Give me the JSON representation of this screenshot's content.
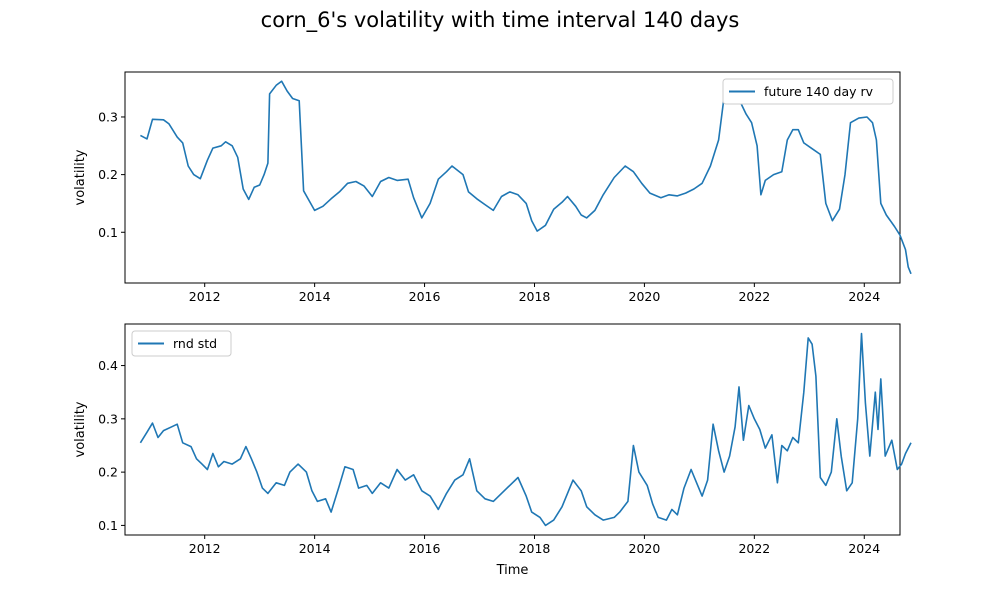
{
  "suptitle": "corn_6's volatility with time interval 140 days",
  "chart_data": [
    {
      "type": "line",
      "panel": "top",
      "xlabel": "",
      "ylabel": "volatility",
      "xlim": [
        2010.55,
        2024.65
      ],
      "ylim": [
        0.012,
        0.378
      ],
      "xticks": [
        2012,
        2014,
        2016,
        2018,
        2020,
        2022,
        2024
      ],
      "yticks": [
        0.1,
        0.2,
        0.3
      ],
      "legend": "upper right",
      "color": "#1f77b4",
      "series": [
        {
          "name": "future 140 day rv",
          "points": [
            [
              2010.83,
              0.268
            ],
            [
              2010.95,
              0.262
            ],
            [
              2011.05,
              0.296
            ],
            [
              2011.25,
              0.295
            ],
            [
              2011.35,
              0.288
            ],
            [
              2011.5,
              0.265
            ],
            [
              2011.6,
              0.255
            ],
            [
              2011.7,
              0.215
            ],
            [
              2011.8,
              0.2
            ],
            [
              2011.92,
              0.193
            ],
            [
              2012.05,
              0.225
            ],
            [
              2012.15,
              0.246
            ],
            [
              2012.3,
              0.25
            ],
            [
              2012.38,
              0.257
            ],
            [
              2012.5,
              0.25
            ],
            [
              2012.6,
              0.23
            ],
            [
              2012.7,
              0.175
            ],
            [
              2012.8,
              0.157
            ],
            [
              2012.9,
              0.178
            ],
            [
              2013.0,
              0.182
            ],
            [
              2013.08,
              0.2
            ],
            [
              2013.15,
              0.22
            ],
            [
              2013.18,
              0.34
            ],
            [
              2013.3,
              0.355
            ],
            [
              2013.4,
              0.362
            ],
            [
              2013.5,
              0.345
            ],
            [
              2013.6,
              0.332
            ],
            [
              2013.72,
              0.328
            ],
            [
              2013.8,
              0.172
            ],
            [
              2013.9,
              0.155
            ],
            [
              2014.0,
              0.138
            ],
            [
              2014.15,
              0.145
            ],
            [
              2014.3,
              0.158
            ],
            [
              2014.45,
              0.17
            ],
            [
              2014.6,
              0.185
            ],
            [
              2014.75,
              0.188
            ],
            [
              2014.9,
              0.18
            ],
            [
              2015.05,
              0.162
            ],
            [
              2015.2,
              0.188
            ],
            [
              2015.35,
              0.195
            ],
            [
              2015.5,
              0.19
            ],
            [
              2015.7,
              0.192
            ],
            [
              2015.8,
              0.16
            ],
            [
              2015.95,
              0.125
            ],
            [
              2016.1,
              0.15
            ],
            [
              2016.25,
              0.192
            ],
            [
              2016.4,
              0.205
            ],
            [
              2016.5,
              0.215
            ],
            [
              2016.7,
              0.2
            ],
            [
              2016.8,
              0.17
            ],
            [
              2016.95,
              0.158
            ],
            [
              2017.1,
              0.148
            ],
            [
              2017.25,
              0.138
            ],
            [
              2017.4,
              0.162
            ],
            [
              2017.55,
              0.17
            ],
            [
              2017.7,
              0.165
            ],
            [
              2017.85,
              0.15
            ],
            [
              2017.95,
              0.12
            ],
            [
              2018.05,
              0.102
            ],
            [
              2018.2,
              0.112
            ],
            [
              2018.35,
              0.14
            ],
            [
              2018.5,
              0.152
            ],
            [
              2018.6,
              0.162
            ],
            [
              2018.75,
              0.145
            ],
            [
              2018.85,
              0.13
            ],
            [
              2018.95,
              0.125
            ],
            [
              2019.1,
              0.138
            ],
            [
              2019.25,
              0.165
            ],
            [
              2019.45,
              0.195
            ],
            [
              2019.65,
              0.215
            ],
            [
              2019.8,
              0.205
            ],
            [
              2019.95,
              0.185
            ],
            [
              2020.1,
              0.168
            ],
            [
              2020.3,
              0.16
            ],
            [
              2020.45,
              0.165
            ],
            [
              2020.6,
              0.163
            ],
            [
              2020.75,
              0.168
            ],
            [
              2020.9,
              0.175
            ],
            [
              2021.05,
              0.185
            ],
            [
              2021.2,
              0.215
            ],
            [
              2021.35,
              0.26
            ],
            [
              2021.45,
              0.335
            ],
            [
              2021.6,
              0.33
            ],
            [
              2021.75,
              0.325
            ],
            [
              2021.85,
              0.305
            ],
            [
              2021.95,
              0.29
            ],
            [
              2022.05,
              0.25
            ],
            [
              2022.12,
              0.165
            ],
            [
              2022.2,
              0.19
            ],
            [
              2022.35,
              0.2
            ],
            [
              2022.5,
              0.205
            ],
            [
              2022.6,
              0.26
            ],
            [
              2022.7,
              0.278
            ],
            [
              2022.8,
              0.278
            ],
            [
              2022.9,
              0.255
            ],
            [
              2023.05,
              0.245
            ],
            [
              2023.2,
              0.235
            ],
            [
              2023.3,
              0.15
            ],
            [
              2023.42,
              0.12
            ],
            [
              2023.55,
              0.14
            ],
            [
              2023.65,
              0.2
            ],
            [
              2023.75,
              0.29
            ],
            [
              2023.9,
              0.298
            ],
            [
              2024.05,
              0.3
            ],
            [
              2024.15,
              0.29
            ],
            [
              2024.22,
              0.26
            ],
            [
              2024.3,
              0.15
            ],
            [
              2024.4,
              0.13
            ],
            [
              2024.55,
              0.11
            ],
            [
              2024.65,
              0.095
            ],
            [
              2024.75,
              0.07
            ],
            [
              2024.8,
              0.04
            ],
            [
              2024.85,
              0.028
            ]
          ]
        }
      ]
    },
    {
      "type": "line",
      "panel": "bottom",
      "xlabel": "Time",
      "ylabel": "volatility",
      "xlim": [
        2010.55,
        2024.65
      ],
      "ylim": [
        0.082,
        0.478
      ],
      "xticks": [
        2012,
        2014,
        2016,
        2018,
        2020,
        2022,
        2024
      ],
      "yticks": [
        0.1,
        0.2,
        0.3,
        0.4
      ],
      "legend": "upper left",
      "color": "#1f77b4",
      "series": [
        {
          "name": "rnd std",
          "points": [
            [
              2010.83,
              0.255
            ],
            [
              2010.95,
              0.275
            ],
            [
              2011.05,
              0.292
            ],
            [
              2011.15,
              0.265
            ],
            [
              2011.25,
              0.278
            ],
            [
              2011.4,
              0.285
            ],
            [
              2011.5,
              0.29
            ],
            [
              2011.6,
              0.255
            ],
            [
              2011.75,
              0.248
            ],
            [
              2011.85,
              0.225
            ],
            [
              2011.95,
              0.215
            ],
            [
              2012.05,
              0.205
            ],
            [
              2012.15,
              0.235
            ],
            [
              2012.25,
              0.21
            ],
            [
              2012.35,
              0.22
            ],
            [
              2012.5,
              0.215
            ],
            [
              2012.65,
              0.225
            ],
            [
              2012.75,
              0.248
            ],
            [
              2012.85,
              0.225
            ],
            [
              2012.95,
              0.2
            ],
            [
              2013.05,
              0.17
            ],
            [
              2013.15,
              0.16
            ],
            [
              2013.3,
              0.18
            ],
            [
              2013.45,
              0.175
            ],
            [
              2013.55,
              0.2
            ],
            [
              2013.7,
              0.215
            ],
            [
              2013.85,
              0.2
            ],
            [
              2013.95,
              0.165
            ],
            [
              2014.05,
              0.145
            ],
            [
              2014.2,
              0.15
            ],
            [
              2014.3,
              0.125
            ],
            [
              2014.45,
              0.175
            ],
            [
              2014.55,
              0.21
            ],
            [
              2014.7,
              0.205
            ],
            [
              2014.8,
              0.17
            ],
            [
              2014.95,
              0.175
            ],
            [
              2015.05,
              0.16
            ],
            [
              2015.2,
              0.18
            ],
            [
              2015.35,
              0.17
            ],
            [
              2015.5,
              0.205
            ],
            [
              2015.65,
              0.185
            ],
            [
              2015.8,
              0.195
            ],
            [
              2015.95,
              0.165
            ],
            [
              2016.1,
              0.155
            ],
            [
              2016.25,
              0.13
            ],
            [
              2016.4,
              0.16
            ],
            [
              2016.55,
              0.185
            ],
            [
              2016.7,
              0.195
            ],
            [
              2016.82,
              0.225
            ],
            [
              2016.95,
              0.165
            ],
            [
              2017.1,
              0.15
            ],
            [
              2017.25,
              0.145
            ],
            [
              2017.4,
              0.16
            ],
            [
              2017.55,
              0.175
            ],
            [
              2017.7,
              0.19
            ],
            [
              2017.85,
              0.155
            ],
            [
              2017.95,
              0.125
            ],
            [
              2018.1,
              0.115
            ],
            [
              2018.2,
              0.1
            ],
            [
              2018.35,
              0.11
            ],
            [
              2018.5,
              0.135
            ],
            [
              2018.6,
              0.16
            ],
            [
              2018.7,
              0.185
            ],
            [
              2018.85,
              0.165
            ],
            [
              2018.95,
              0.135
            ],
            [
              2019.1,
              0.12
            ],
            [
              2019.25,
              0.11
            ],
            [
              2019.45,
              0.115
            ],
            [
              2019.55,
              0.125
            ],
            [
              2019.7,
              0.145
            ],
            [
              2019.8,
              0.25
            ],
            [
              2019.9,
              0.2
            ],
            [
              2020.05,
              0.175
            ],
            [
              2020.15,
              0.14
            ],
            [
              2020.25,
              0.115
            ],
            [
              2020.4,
              0.11
            ],
            [
              2020.5,
              0.13
            ],
            [
              2020.6,
              0.12
            ],
            [
              2020.72,
              0.17
            ],
            [
              2020.85,
              0.205
            ],
            [
              2020.95,
              0.18
            ],
            [
              2021.05,
              0.155
            ],
            [
              2021.15,
              0.185
            ],
            [
              2021.25,
              0.29
            ],
            [
              2021.35,
              0.24
            ],
            [
              2021.45,
              0.2
            ],
            [
              2021.55,
              0.23
            ],
            [
              2021.65,
              0.285
            ],
            [
              2021.72,
              0.36
            ],
            [
              2021.8,
              0.26
            ],
            [
              2021.9,
              0.325
            ],
            [
              2022.0,
              0.3
            ],
            [
              2022.1,
              0.28
            ],
            [
              2022.2,
              0.245
            ],
            [
              2022.32,
              0.27
            ],
            [
              2022.42,
              0.18
            ],
            [
              2022.5,
              0.25
            ],
            [
              2022.6,
              0.24
            ],
            [
              2022.7,
              0.265
            ],
            [
              2022.8,
              0.255
            ],
            [
              2022.9,
              0.35
            ],
            [
              2022.98,
              0.452
            ],
            [
              2023.05,
              0.44
            ],
            [
              2023.12,
              0.38
            ],
            [
              2023.2,
              0.19
            ],
            [
              2023.3,
              0.175
            ],
            [
              2023.4,
              0.2
            ],
            [
              2023.5,
              0.3
            ],
            [
              2023.58,
              0.23
            ],
            [
              2023.68,
              0.165
            ],
            [
              2023.78,
              0.18
            ],
            [
              2023.88,
              0.3
            ],
            [
              2023.95,
              0.46
            ],
            [
              2024.02,
              0.33
            ],
            [
              2024.1,
              0.23
            ],
            [
              2024.2,
              0.35
            ],
            [
              2024.25,
              0.28
            ],
            [
              2024.3,
              0.375
            ],
            [
              2024.38,
              0.23
            ],
            [
              2024.5,
              0.26
            ],
            [
              2024.6,
              0.205
            ],
            [
              2024.68,
              0.215
            ],
            [
              2024.75,
              0.235
            ],
            [
              2024.85,
              0.255
            ]
          ]
        }
      ]
    }
  ]
}
